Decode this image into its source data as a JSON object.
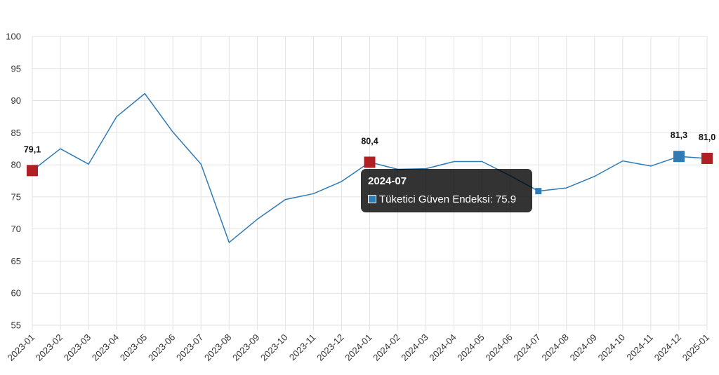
{
  "chart_data": {
    "type": "line",
    "x": [
      "2023-01",
      "2023-02",
      "2023-03",
      "2023-04",
      "2023-05",
      "2023-06",
      "2023-07",
      "2023-08",
      "2023-09",
      "2023-10",
      "2023-11",
      "2023-12",
      "2024-01",
      "2024-02",
      "2024-03",
      "2024-04",
      "2024-05",
      "2024-06",
      "2024-07",
      "2024-08",
      "2024-09",
      "2024-10",
      "2024-11",
      "2024-12",
      "2025-01"
    ],
    "series": [
      {
        "name": "Tüketici Güven Endeksi",
        "color": "#2e7bb6",
        "values": [
          79.1,
          82.5,
          80.1,
          87.5,
          91.1,
          85.1,
          80.1,
          67.9,
          71.5,
          74.6,
          75.5,
          77.4,
          80.4,
          79.3,
          79.4,
          80.5,
          80.5,
          78.3,
          75.9,
          76.4,
          78.2,
          80.6,
          79.8,
          81.3,
          81.0
        ]
      }
    ],
    "ylim": [
      55,
      100
    ],
    "yticks": [
      55,
      60,
      65,
      70,
      75,
      80,
      85,
      90,
      95,
      100
    ],
    "grid": true,
    "legend": "none",
    "marker_color": "#b11f24",
    "annotations": [
      {
        "x": "2023-01",
        "label": "79,1"
      },
      {
        "x": "2024-01",
        "label": "80,4"
      },
      {
        "x": "2024-12",
        "label": "81,3"
      },
      {
        "x": "2025-01",
        "label": "81,0"
      }
    ],
    "tooltip": {
      "title": "2024-07",
      "series_label": "Tüketici Güven Endeksi: 75.9",
      "x": "2024-07"
    }
  }
}
